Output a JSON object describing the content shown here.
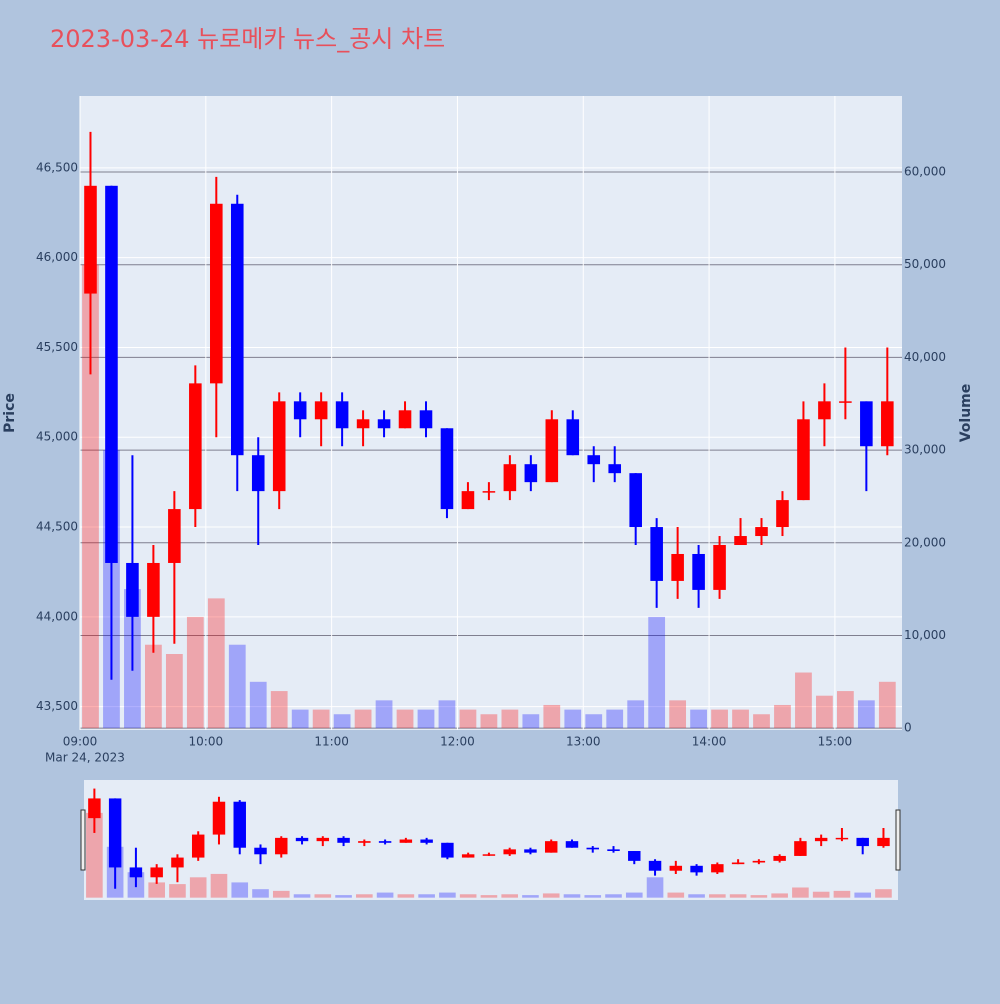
{
  "chart_data": {
    "type": "candlestick",
    "title": "2023-03-24 뉴로메카 뉴스_공시 차트",
    "y_label": "Price",
    "y2_label": "Volume",
    "x_date_label": "Mar 24, 2023",
    "increasing_color": "#ff0000",
    "decreasing_color": "#0000ff",
    "x": [
      "09:00",
      "09:10",
      "09:20",
      "09:30",
      "09:40",
      "09:50",
      "10:00",
      "10:10",
      "10:20",
      "10:30",
      "10:40",
      "10:50",
      "11:00",
      "11:10",
      "11:20",
      "11:30",
      "11:40",
      "11:50",
      "12:00",
      "12:10",
      "12:20",
      "12:30",
      "12:40",
      "12:50",
      "13:00",
      "13:10",
      "13:20",
      "13:30",
      "13:40",
      "13:50",
      "14:00",
      "14:10",
      "14:20",
      "14:30",
      "14:40",
      "14:50",
      "15:00",
      "15:10",
      "15:20"
    ],
    "open": [
      45800,
      46400,
      44300,
      44000,
      44300,
      44600,
      45300,
      46300,
      44900,
      44700,
      45200,
      45100,
      45200,
      45050,
      45100,
      45050,
      45150,
      45050,
      44600,
      44700,
      44700,
      44850,
      44750,
      45100,
      44900,
      44850,
      44800,
      44500,
      44200,
      44350,
      44150,
      44400,
      44450,
      44500,
      44650,
      45100,
      45200,
      45200,
      44950
    ],
    "high": [
      46700,
      46400,
      44900,
      44400,
      44700,
      45400,
      46450,
      46350,
      45000,
      45250,
      45250,
      45250,
      45250,
      45150,
      45150,
      45200,
      45200,
      45050,
      44750,
      44750,
      44900,
      44900,
      45150,
      45150,
      44950,
      44950,
      44800,
      44550,
      44500,
      44400,
      44450,
      44550,
      44550,
      44700,
      45200,
      45300,
      45500,
      45200,
      45500
    ],
    "low": [
      45350,
      43650,
      43700,
      43800,
      43850,
      44500,
      45000,
      44700,
      44400,
      44600,
      45000,
      44950,
      44950,
      44950,
      45000,
      45050,
      45000,
      44550,
      44600,
      44650,
      44650,
      44700,
      44750,
      44900,
      44750,
      44750,
      44400,
      44050,
      44100,
      44050,
      44100,
      44400,
      44400,
      44450,
      44650,
      44950,
      45100,
      44700,
      44900
    ],
    "close": [
      46400,
      44300,
      44000,
      44300,
      44600,
      45300,
      46300,
      44900,
      44700,
      45200,
      45100,
      45200,
      45050,
      45100,
      45050,
      45150,
      45050,
      44600,
      44700,
      44700,
      44850,
      44750,
      45100,
      44900,
      44850,
      44800,
      44500,
      44200,
      44350,
      44150,
      44400,
      44450,
      44500,
      44650,
      45100,
      45200,
      45200,
      44950,
      45200
    ],
    "volume": [
      50000,
      30000,
      15000,
      9000,
      8000,
      12000,
      14000,
      9000,
      5000,
      4000,
      2000,
      2000,
      1500,
      2000,
      3000,
      2000,
      2000,
      3000,
      2000,
      1500,
      2000,
      1500,
      2500,
      2000,
      1500,
      2000,
      3000,
      12000,
      3000,
      2000,
      2000,
      2000,
      1500,
      2500,
      6000,
      3500,
      4000,
      3000,
      5000
    ],
    "xlim": [
      "09:00",
      "15:32"
    ],
    "xticks": [
      "09:00",
      "10:00",
      "11:00",
      "12:00",
      "13:00",
      "14:00",
      "15:00"
    ],
    "ylim": [
      43370,
      46900
    ],
    "yticks": [
      {
        "value": 43500,
        "label": "43,500"
      },
      {
        "value": 44000,
        "label": "44,000"
      },
      {
        "value": 44500,
        "label": "44,500"
      },
      {
        "value": 45000,
        "label": "45,000"
      },
      {
        "value": 45500,
        "label": "45,500"
      },
      {
        "value": 46000,
        "label": "46,000"
      },
      {
        "value": 46500,
        "label": "46,500"
      }
    ],
    "y2lim": [
      -200,
      68200
    ],
    "y2ticks": [
      0,
      {
        "value": 10000,
        "label": "10,000"
      },
      {
        "value": 20000,
        "label": "20,000"
      },
      {
        "value": 30000,
        "label": "30,000"
      },
      {
        "value": 40000,
        "label": "40,000"
      },
      {
        "value": 50000,
        "label": "50,000"
      },
      {
        "value": 60000,
        "label": "60,000"
      }
    ],
    "grid": true
  }
}
